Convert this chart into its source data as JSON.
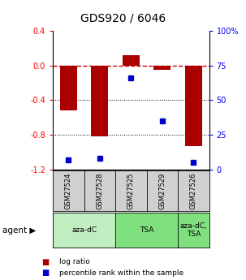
{
  "title": "GDS920 / 6046",
  "categories": [
    "GSM27524",
    "GSM27528",
    "GSM27525",
    "GSM27529",
    "GSM27526"
  ],
  "log_ratios": [
    -0.52,
    -0.82,
    0.12,
    -0.05,
    -0.93
  ],
  "percentile_ranks": [
    7,
    8,
    66,
    35,
    5
  ],
  "agent_groups": [
    {
      "label": "aza-dC",
      "span": [
        0,
        2
      ],
      "color": "#c0eec0"
    },
    {
      "label": "TSA",
      "span": [
        2,
        4
      ],
      "color": "#80e080"
    },
    {
      "label": "aza-dC,\nTSA",
      "span": [
        4,
        5
      ],
      "color": "#80e080"
    }
  ],
  "ylim": [
    -1.2,
    0.4
  ],
  "yticks_left": [
    -1.2,
    -0.8,
    -0.4,
    0.0,
    0.4
  ],
  "yticks_right": [
    0,
    25,
    50,
    75,
    100
  ],
  "bar_color": "#aa0000",
  "dot_color": "#0000cc",
  "zero_line_color": "#cc0000",
  "background_color": "#ffffff",
  "legend_bar_label": "log ratio",
  "legend_dot_label": "percentile rank within the sample",
  "sample_box_color": "#d0d0d0"
}
